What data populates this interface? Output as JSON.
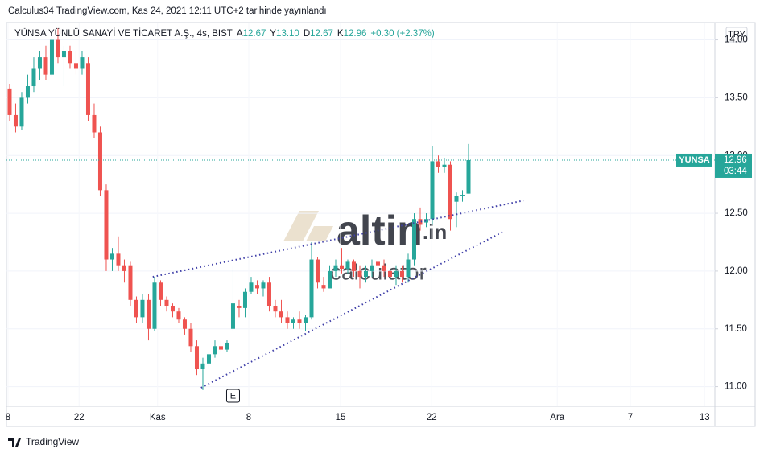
{
  "header": {
    "published": "Calculus34 TradingView.com, Kas 24, 2021 12:11 UTC+2 tarihinde yayınlandı",
    "symbol": "YÜNSA YÜNLÜ SANAYİ VE TİCARET A.Ş., 4s, BIST",
    "ohlc": [
      {
        "label": "A",
        "value": "12.67"
      },
      {
        "label": "Y",
        "value": "13.10"
      },
      {
        "label": "D",
        "value": "12.67"
      },
      {
        "label": "K",
        "value": "12.96"
      }
    ],
    "change": "+0.30 (+2.37%)",
    "currency": "TRY"
  },
  "chart_data": {
    "type": "candlestick",
    "x": [
      0,
      1,
      2,
      3,
      4,
      5,
      6,
      7,
      8,
      9,
      10,
      11,
      12,
      13,
      14,
      15,
      16,
      17,
      18,
      19,
      20,
      21,
      22,
      23,
      24,
      25,
      26,
      27,
      28,
      29,
      30,
      31,
      32,
      33,
      34,
      35,
      36,
      37,
      38,
      39,
      40,
      41,
      42,
      43,
      44,
      45,
      46,
      47,
      48,
      49,
      50,
      51,
      52,
      53,
      54,
      55,
      56,
      57,
      58,
      59,
      60,
      61,
      62,
      63,
      64,
      65,
      66,
      67,
      68,
      69,
      70,
      71,
      72,
      73,
      74,
      75,
      76
    ],
    "open": [
      13.58,
      13.35,
      13.25,
      13.5,
      13.6,
      13.75,
      13.85,
      13.7,
      14.0,
      13.85,
      13.9,
      13.8,
      13.75,
      13.8,
      13.35,
      13.2,
      12.7,
      12.1,
      12.15,
      12.05,
      12.05,
      11.75,
      11.6,
      11.75,
      11.5,
      11.9,
      11.75,
      11.7,
      11.65,
      11.58,
      11.5,
      11.35,
      11.15,
      11.2,
      11.28,
      11.35,
      11.32,
      11.5,
      11.7,
      11.68,
      11.82,
      11.88,
      11.85,
      11.9,
      11.7,
      11.65,
      11.6,
      11.55,
      11.58,
      11.55,
      11.6,
      12.1,
      11.88,
      11.85,
      12.0,
      12.05,
      12.02,
      12.08,
      12.0,
      11.95,
      12.0,
      12.08,
      12.05,
      12.0,
      11.95,
      12.0,
      11.95,
      12.1,
      12.45,
      12.42,
      12.45,
      12.95,
      12.9,
      12.92,
      12.6,
      12.65,
      12.67
    ],
    "high": [
      13.62,
      13.45,
      13.55,
      13.7,
      13.85,
      13.9,
      13.95,
      14.05,
      14.1,
      13.95,
      13.95,
      13.9,
      13.9,
      13.85,
      13.45,
      13.25,
      12.75,
      12.2,
      12.3,
      12.1,
      12.08,
      11.78,
      11.8,
      11.8,
      11.95,
      11.92,
      11.78,
      11.72,
      11.68,
      11.6,
      11.55,
      11.4,
      11.25,
      11.3,
      11.4,
      11.4,
      11.4,
      12.05,
      11.75,
      11.85,
      11.95,
      11.92,
      11.92,
      11.95,
      11.75,
      11.75,
      11.65,
      11.6,
      11.65,
      11.62,
      12.25,
      12.12,
      11.95,
      12.05,
      12.1,
      12.2,
      12.1,
      12.1,
      12.05,
      12.05,
      12.1,
      12.15,
      12.1,
      12.05,
      12.05,
      12.05,
      12.15,
      12.5,
      12.55,
      12.5,
      13.08,
      13.0,
      12.98,
      12.95,
      12.68,
      12.7,
      13.1
    ],
    "low": [
      13.3,
      13.2,
      13.22,
      13.45,
      13.55,
      13.65,
      13.65,
      13.68,
      13.8,
      13.6,
      13.75,
      13.7,
      13.7,
      13.3,
      13.15,
      12.65,
      12.0,
      12.0,
      12.0,
      11.9,
      11.7,
      11.55,
      11.55,
      11.4,
      11.48,
      11.7,
      11.65,
      11.6,
      11.55,
      11.45,
      11.3,
      11.1,
      10.97,
      11.15,
      11.25,
      11.3,
      11.3,
      11.48,
      11.6,
      11.6,
      11.8,
      11.8,
      11.78,
      11.65,
      11.6,
      11.55,
      11.5,
      11.5,
      11.5,
      11.48,
      11.58,
      11.85,
      11.82,
      11.85,
      11.95,
      11.98,
      11.98,
      11.95,
      11.85,
      11.9,
      11.95,
      12.0,
      11.95,
      11.9,
      11.88,
      11.9,
      11.9,
      12.05,
      12.35,
      12.38,
      12.4,
      12.85,
      12.85,
      12.35,
      12.38,
      12.6,
      12.67
    ],
    "close": [
      13.35,
      13.25,
      13.5,
      13.6,
      13.75,
      13.85,
      13.7,
      14.0,
      13.85,
      13.9,
      13.8,
      13.75,
      13.85,
      13.35,
      13.2,
      12.7,
      12.1,
      12.15,
      12.05,
      12.0,
      11.75,
      11.6,
      11.75,
      11.5,
      11.9,
      11.75,
      11.7,
      11.65,
      11.58,
      11.5,
      11.35,
      11.15,
      11.2,
      11.28,
      11.35,
      11.32,
      11.38,
      11.72,
      11.68,
      11.82,
      11.9,
      11.85,
      11.9,
      11.7,
      11.65,
      11.6,
      11.55,
      11.58,
      11.55,
      11.6,
      12.1,
      11.9,
      11.85,
      12.0,
      12.05,
      12.02,
      12.08,
      12.0,
      11.95,
      12.0,
      12.05,
      12.05,
      12.0,
      11.95,
      12.0,
      11.95,
      12.1,
      12.45,
      12.4,
      12.45,
      12.95,
      12.9,
      12.92,
      12.45,
      12.65,
      12.66,
      12.96
    ],
    "up_color": "#26a69a",
    "down_color": "#ef5350",
    "xlim": [
      -0.53,
      116.8
    ],
    "xticks": [
      {
        "value": -0.27,
        "label": "8"
      },
      {
        "value": 11.5,
        "label": "22"
      },
      {
        "value": 24.5,
        "label": "Kas"
      },
      {
        "value": 39.6,
        "label": "8"
      },
      {
        "value": 54.8,
        "label": "15"
      },
      {
        "value": 69.9,
        "label": "22"
      },
      {
        "value": 90.7,
        "label": "Ara"
      },
      {
        "value": 102.8,
        "label": "7"
      },
      {
        "value": 115.1,
        "label": "13"
      }
    ],
    "ylim": [
      10.83,
      14.15
    ],
    "yticks": [
      {
        "value": 11,
        "label": "11.00"
      },
      {
        "value": 11.5,
        "label": "11.50"
      },
      {
        "value": 12,
        "label": "12.00"
      },
      {
        "value": 12.5,
        "label": "12.50"
      },
      {
        "value": 13,
        "label": "13.00"
      },
      {
        "value": 13.5,
        "label": "13.50"
      },
      {
        "value": 14,
        "label": "14.00"
      }
    ],
    "grid": true,
    "trendlines": [
      {
        "x": [
          23.7,
          85.1
        ],
        "values": [
          11.95,
          12.61
        ]
      },
      {
        "x": [
          31.7,
          81.7
        ],
        "values": [
          10.99,
          12.34
        ]
      }
    ],
    "trendline_color": "#3f3fa8",
    "last_price": {
      "ticker": "YUNSA",
      "countdown": "03:44"
    },
    "event": {
      "x": 37,
      "label": "E"
    },
    "watermark": {
      "brand": "altin",
      "domain": ".in",
      "sub": "calculator"
    },
    "footer": "TradingView"
  }
}
